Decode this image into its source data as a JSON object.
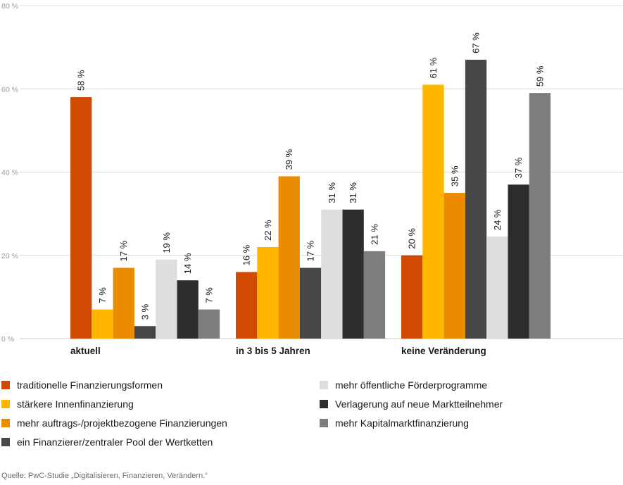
{
  "chart_data": {
    "type": "bar",
    "title": "",
    "xlabel": "",
    "ylabel": "",
    "ylim": [
      0,
      80
    ],
    "yticks": [
      0,
      20,
      40,
      60,
      80
    ],
    "ytick_labels": [
      "0 %",
      "20 %",
      "40 %",
      "60 %",
      "80 %"
    ],
    "grid": true,
    "legend_position": "bottom",
    "categories": [
      "aktuell",
      "in 3 bis 5 Jahren",
      "keine Veränderung"
    ],
    "series": [
      {
        "name": "traditionelle Finanzierungsformen",
        "color": "#d04a02",
        "values": [
          58,
          16,
          20
        ],
        "labels": [
          "58 %",
          "16 %",
          "20 %"
        ]
      },
      {
        "name": "stärkere Innenfinanzierung",
        "color": "#ffb600",
        "values": [
          7,
          22,
          61
        ],
        "labels": [
          "7 %",
          "22 %",
          "61 %"
        ]
      },
      {
        "name": "mehr auftrags-/projektbezogene Finanzierungen",
        "color": "#eb8c00",
        "values": [
          17,
          39,
          35
        ],
        "labels": [
          "17 %",
          "39 %",
          "35 %"
        ]
      },
      {
        "name": "ein Finanzierer/zentraler Pool der Wertketten",
        "color": "#474747",
        "values": [
          3,
          17,
          67
        ],
        "labels": [
          "3 %",
          "17 %",
          "67 %"
        ]
      },
      {
        "name": "mehr öffentliche Förderprogramme",
        "color": "#dedede",
        "values": [
          19,
          31,
          24.5
        ],
        "labels": [
          "19 %",
          "31 %",
          "24 %"
        ]
      },
      {
        "name": "Verlagerung auf neue Marktteilnehmer",
        "color": "#2d2d2d",
        "values": [
          14,
          31,
          37
        ],
        "labels": [
          "14 %",
          "31 %",
          "37 %"
        ]
      },
      {
        "name": "mehr Kapitalmarktfinanzierung",
        "color": "#7d7d7d",
        "values": [
          7,
          21,
          59
        ],
        "labels": [
          "7 %",
          "21 %",
          "59 %"
        ]
      }
    ],
    "source": "Quelle: PwC-Studie „Digitalisieren, Finanzieren, Verändern.“"
  }
}
